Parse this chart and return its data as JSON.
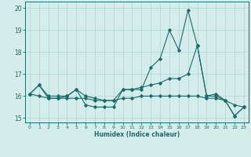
{
  "title": "",
  "xlabel": "Humidex (Indice chaleur)",
  "ylabel": "",
  "background_color": "#d4ecea",
  "grid_color": "#b0d4d0",
  "line_color": "#1a6b6b",
  "xlim": [
    -0.5,
    23.5
  ],
  "ylim": [
    14.8,
    20.3
  ],
  "yticks": [
    15,
    16,
    17,
    18,
    19,
    20
  ],
  "xticks": [
    0,
    1,
    2,
    3,
    4,
    5,
    6,
    7,
    8,
    9,
    10,
    11,
    12,
    13,
    14,
    15,
    16,
    17,
    18,
    19,
    20,
    21,
    22,
    23
  ],
  "series": [
    [
      16.1,
      16.5,
      15.9,
      15.9,
      16.0,
      16.3,
      15.6,
      15.5,
      15.5,
      15.5,
      16.3,
      16.3,
      16.3,
      17.3,
      17.7,
      19.0,
      18.1,
      19.9,
      18.3,
      16.0,
      16.0,
      15.8,
      15.1,
      15.5
    ],
    [
      16.1,
      16.5,
      16.0,
      16.0,
      16.0,
      16.3,
      16.0,
      15.9,
      15.8,
      15.8,
      16.3,
      16.3,
      16.4,
      16.5,
      16.6,
      16.8,
      16.8,
      17.0,
      18.3,
      16.0,
      16.1,
      15.8,
      15.1,
      15.5
    ],
    [
      16.1,
      16.0,
      15.9,
      15.9,
      15.9,
      15.9,
      15.9,
      15.8,
      15.8,
      15.8,
      15.9,
      15.9,
      16.0,
      16.0,
      16.0,
      16.0,
      16.0,
      16.0,
      16.0,
      15.9,
      15.9,
      15.8,
      15.6,
      15.5
    ]
  ],
  "figsize": [
    3.2,
    2.0
  ],
  "dpi": 100
}
